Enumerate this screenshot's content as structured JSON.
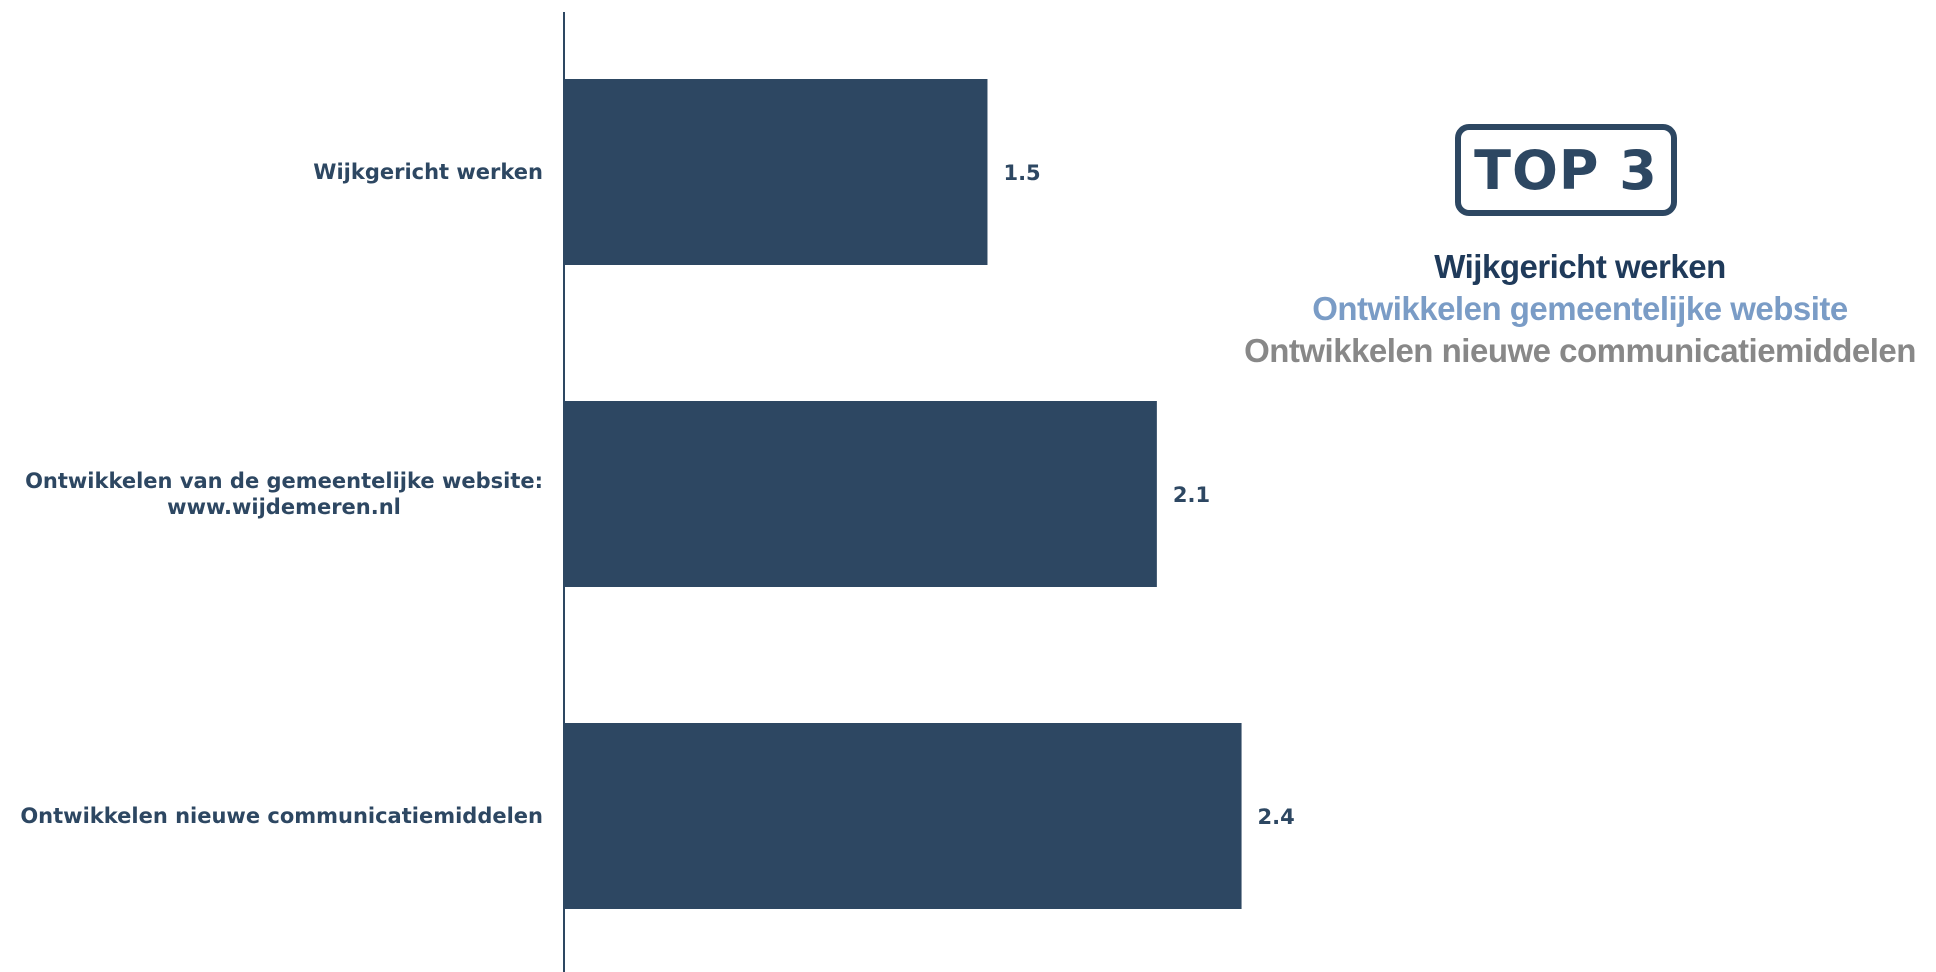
{
  "chart_data": {
    "type": "bar",
    "orientation": "horizontal",
    "categories": [
      [
        "Wijkgericht werken"
      ],
      [
        "Ontwikkelen van de gemeentelijke website:",
        "www.wijdemeren.nl"
      ],
      [
        "Ontwikkelen nieuwe communicatiemiddelen"
      ]
    ],
    "values": [
      1.5,
      2.1,
      2.4
    ],
    "value_labels": [
      "1.5",
      "2.1",
      "2.4"
    ],
    "xlim": [
      0,
      4.75
    ],
    "grid": false,
    "bar_color": "#2d4762",
    "title": "",
    "xlabel": "",
    "ylabel": ""
  },
  "top3": {
    "title": "TOP 3",
    "items": [
      {
        "label": "Wijkgericht werken",
        "color": "#1f3a5a"
      },
      {
        "label": "Ontwikkelen gemeentelijke website",
        "color": "#7a9cc6"
      },
      {
        "label": "Ontwikkelen nieuwe communicatiemiddelen",
        "color": "#888888"
      }
    ]
  }
}
